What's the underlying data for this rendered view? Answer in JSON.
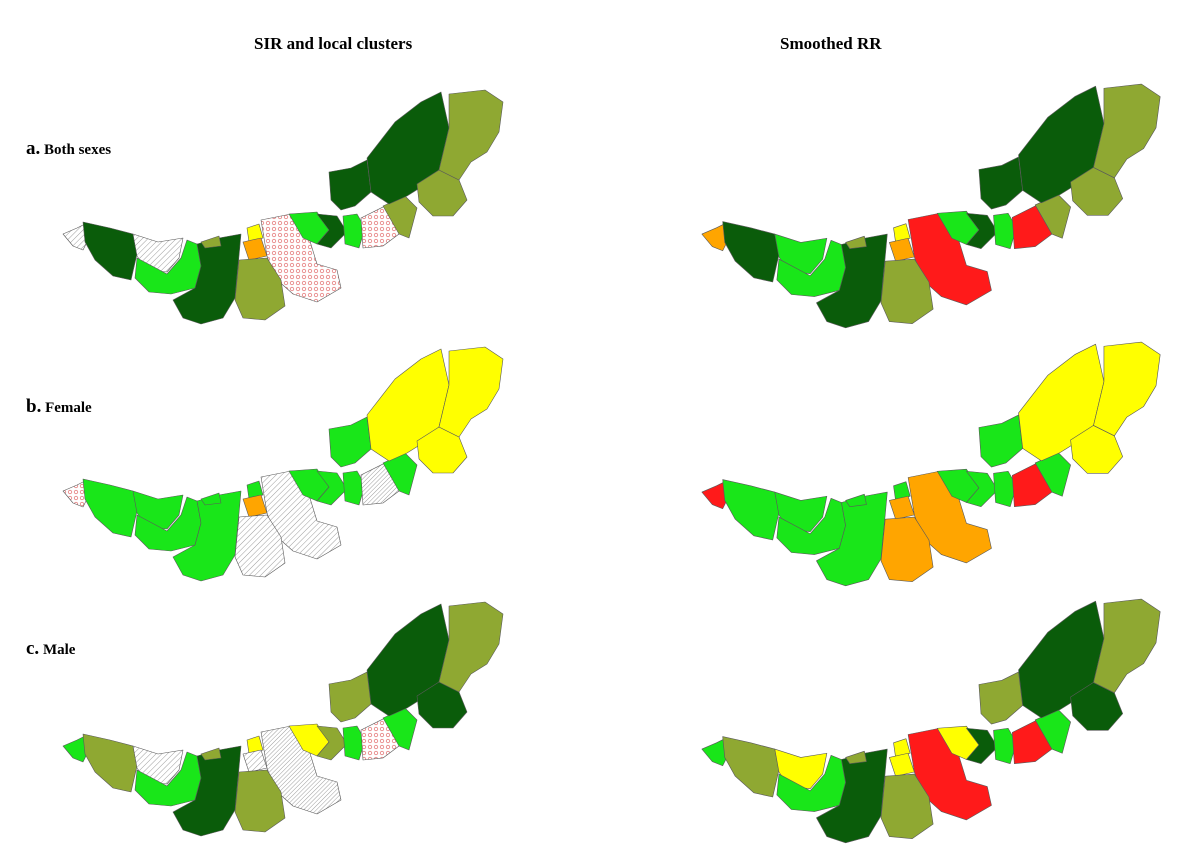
{
  "titles": {
    "left": "SIR and local clusters",
    "right": "Smoothed RR"
  },
  "rows": [
    {
      "key": "a",
      "letter": "a.",
      "label": "Both sexes"
    },
    {
      "key": "b",
      "letter": "b.",
      "label": "Female"
    },
    {
      "key": "c",
      "letter": "c.",
      "label": "Male"
    }
  ],
  "colors": {
    "dark_green": "#0a5c0a",
    "bright_green": "#19e619",
    "olive": "#8fa832",
    "yellow": "#ffff00",
    "orange": "#ffa500",
    "red": "#ff1a1a",
    "hatch_beige": "#f2e3b0",
    "hatch_red_dot": "#e88a8a",
    "hatch_red_diag": "#c84040",
    "hatch_green": "#7fd87f",
    "hatch_light_yellow": "#fbfbc8"
  },
  "maps": {
    "a": {
      "sir": [
        "hatchBeige",
        "dark",
        "hatchGreen",
        "bright",
        "dark",
        "olive",
        "yellow",
        "orange",
        "hatchDots",
        "olive",
        "bright",
        "dark",
        "bright",
        "hatchDots",
        "olive",
        "dark",
        "dark",
        "olive",
        "olive"
      ],
      "rr": [
        "orange",
        "dark",
        "bright",
        "bright",
        "dark",
        "olive",
        "yellow",
        "orange",
        "red",
        "olive",
        "bright",
        "dark",
        "bright",
        "red",
        "olive",
        "dark",
        "dark",
        "olive",
        "olive"
      ]
    },
    "b": {
      "sir": [
        "hatchDots",
        "bright",
        "bright",
        "bright",
        "bright",
        "bright",
        "bright",
        "orange",
        "hatchBeige",
        "hatchLY",
        "bright",
        "bright",
        "bright",
        "hatchDiag",
        "bright",
        "bright",
        "yellow",
        "yellow",
        "yellow"
      ],
      "rr": [
        "red",
        "bright",
        "bright",
        "bright",
        "bright",
        "bright",
        "bright",
        "orange",
        "orange",
        "orange",
        "bright",
        "bright",
        "bright",
        "red",
        "bright",
        "bright",
        "yellow",
        "yellow",
        "yellow"
      ]
    },
    "c": {
      "sir": [
        "bright",
        "olive",
        "hatchLY",
        "bright",
        "dark",
        "olive",
        "yellow",
        "hatchLY",
        "hatchDiag",
        "olive",
        "yellow",
        "olive",
        "bright",
        "hatchDots",
        "bright",
        "olive",
        "dark",
        "dark",
        "olive"
      ],
      "rr": [
        "bright",
        "olive",
        "yellow",
        "bright",
        "dark",
        "olive",
        "yellow",
        "yellow",
        "red",
        "olive",
        "yellow",
        "dark",
        "bright",
        "red",
        "bright",
        "olive",
        "dark",
        "dark",
        "olive"
      ]
    }
  }
}
